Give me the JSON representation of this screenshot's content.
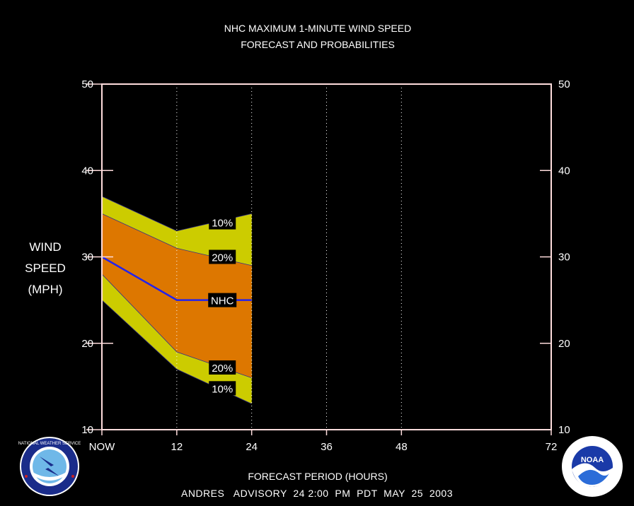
{
  "chart_data": {
    "type": "area",
    "title_lines": [
      "NHC MAXIMUM 1-MINUTE WIND SPEED",
      "FORECAST AND PROBABILITIES"
    ],
    "ylabel_lines": [
      "WIND",
      "SPEED",
      "(MPH)"
    ],
    "xlabel": "FORECAST PERIOD (HOURS)",
    "footer": "ANDRES   ADVISORY  24 2:00  PM  PDT  MAY  25  2003",
    "xlim": [
      0,
      72
    ],
    "ylim": [
      10,
      50
    ],
    "x_ticks": [
      {
        "value": 0,
        "label": "NOW"
      },
      {
        "value": 12,
        "label": "12"
      },
      {
        "value": 24,
        "label": "24"
      },
      {
        "value": 36,
        "label": "36"
      },
      {
        "value": 48,
        "label": "48"
      },
      {
        "value": 72,
        "label": "72"
      }
    ],
    "y_ticks": [
      {
        "value": 10,
        "label": "10"
      },
      {
        "value": 20,
        "label": "20"
      },
      {
        "value": 30,
        "label": "30"
      },
      {
        "value": 40,
        "label": "40"
      },
      {
        "value": 50,
        "label": "50"
      }
    ],
    "x": [
      0,
      12,
      24
    ],
    "series": [
      {
        "name": "10%",
        "role": "upper-10",
        "values": [
          37,
          33,
          35
        ]
      },
      {
        "name": "20%",
        "role": "upper-20",
        "values": [
          35,
          31,
          29
        ]
      },
      {
        "name": "NHC",
        "role": "forecast",
        "values": [
          30,
          25,
          25
        ]
      },
      {
        "name": "20%",
        "role": "lower-20",
        "values": [
          28,
          19,
          16
        ]
      },
      {
        "name": "10%",
        "role": "lower-10",
        "values": [
          25,
          17,
          13
        ]
      }
    ],
    "band_labels": [
      {
        "text": "10%",
        "x": 19.3,
        "y": 34.0
      },
      {
        "text": "20%",
        "x": 19.3,
        "y": 30.0
      },
      {
        "text": "NHC",
        "x": 19.3,
        "y": 25.0
      },
      {
        "text": "20%",
        "x": 19.3,
        "y": 17.2
      },
      {
        "text": "10%",
        "x": 19.3,
        "y": 14.8
      }
    ],
    "colors": {
      "outer_band": "#cccc00",
      "inner_band": "#dd7700",
      "forecast_line": "#2222ee",
      "frame": "#ffdddd",
      "footer": "#33cccc",
      "background": "#000000"
    },
    "logos": [
      {
        "name": "nws-logo",
        "text": "NATIONAL WEATHER SERVICE"
      },
      {
        "name": "noaa-logo",
        "text": "NOAA"
      }
    ]
  }
}
